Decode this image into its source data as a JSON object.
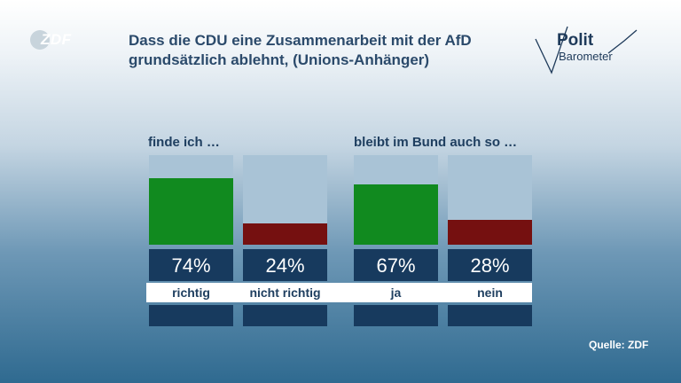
{
  "header": {
    "title": "Dass die CDU eine Zusammenarbeit mit der AfD grundsätzlich ablehnt, (Unions-Anhänger)",
    "logo_left": "ZDF",
    "logo_right": {
      "line1": "Polit",
      "line2": "Barometer"
    }
  },
  "footer": {
    "source": "Quelle: ZDF"
  },
  "colors": {
    "green": "#118a1f",
    "red": "#751010",
    "bar_track": "#a9c3d6",
    "box": "#173a5e"
  },
  "chart_data": {
    "type": "bar",
    "title": "Dass die CDU eine Zusammenarbeit mit der AfD grundsätzlich ablehnt, (Unions-Anhänger)",
    "ylim": [
      0,
      100
    ],
    "groups": [
      {
        "label": "finde ich …",
        "bars": [
          {
            "category": "richtig",
            "value": 74,
            "display": "74%",
            "color": "#118a1f"
          },
          {
            "category": "nicht richtig",
            "value": 24,
            "display": "24%",
            "color": "#751010"
          }
        ]
      },
      {
        "label": "bleibt im Bund auch so …",
        "bars": [
          {
            "category": "ja",
            "value": 67,
            "display": "67%",
            "color": "#118a1f"
          },
          {
            "category": "nein",
            "value": 28,
            "display": "28%",
            "color": "#751010"
          }
        ]
      }
    ]
  }
}
